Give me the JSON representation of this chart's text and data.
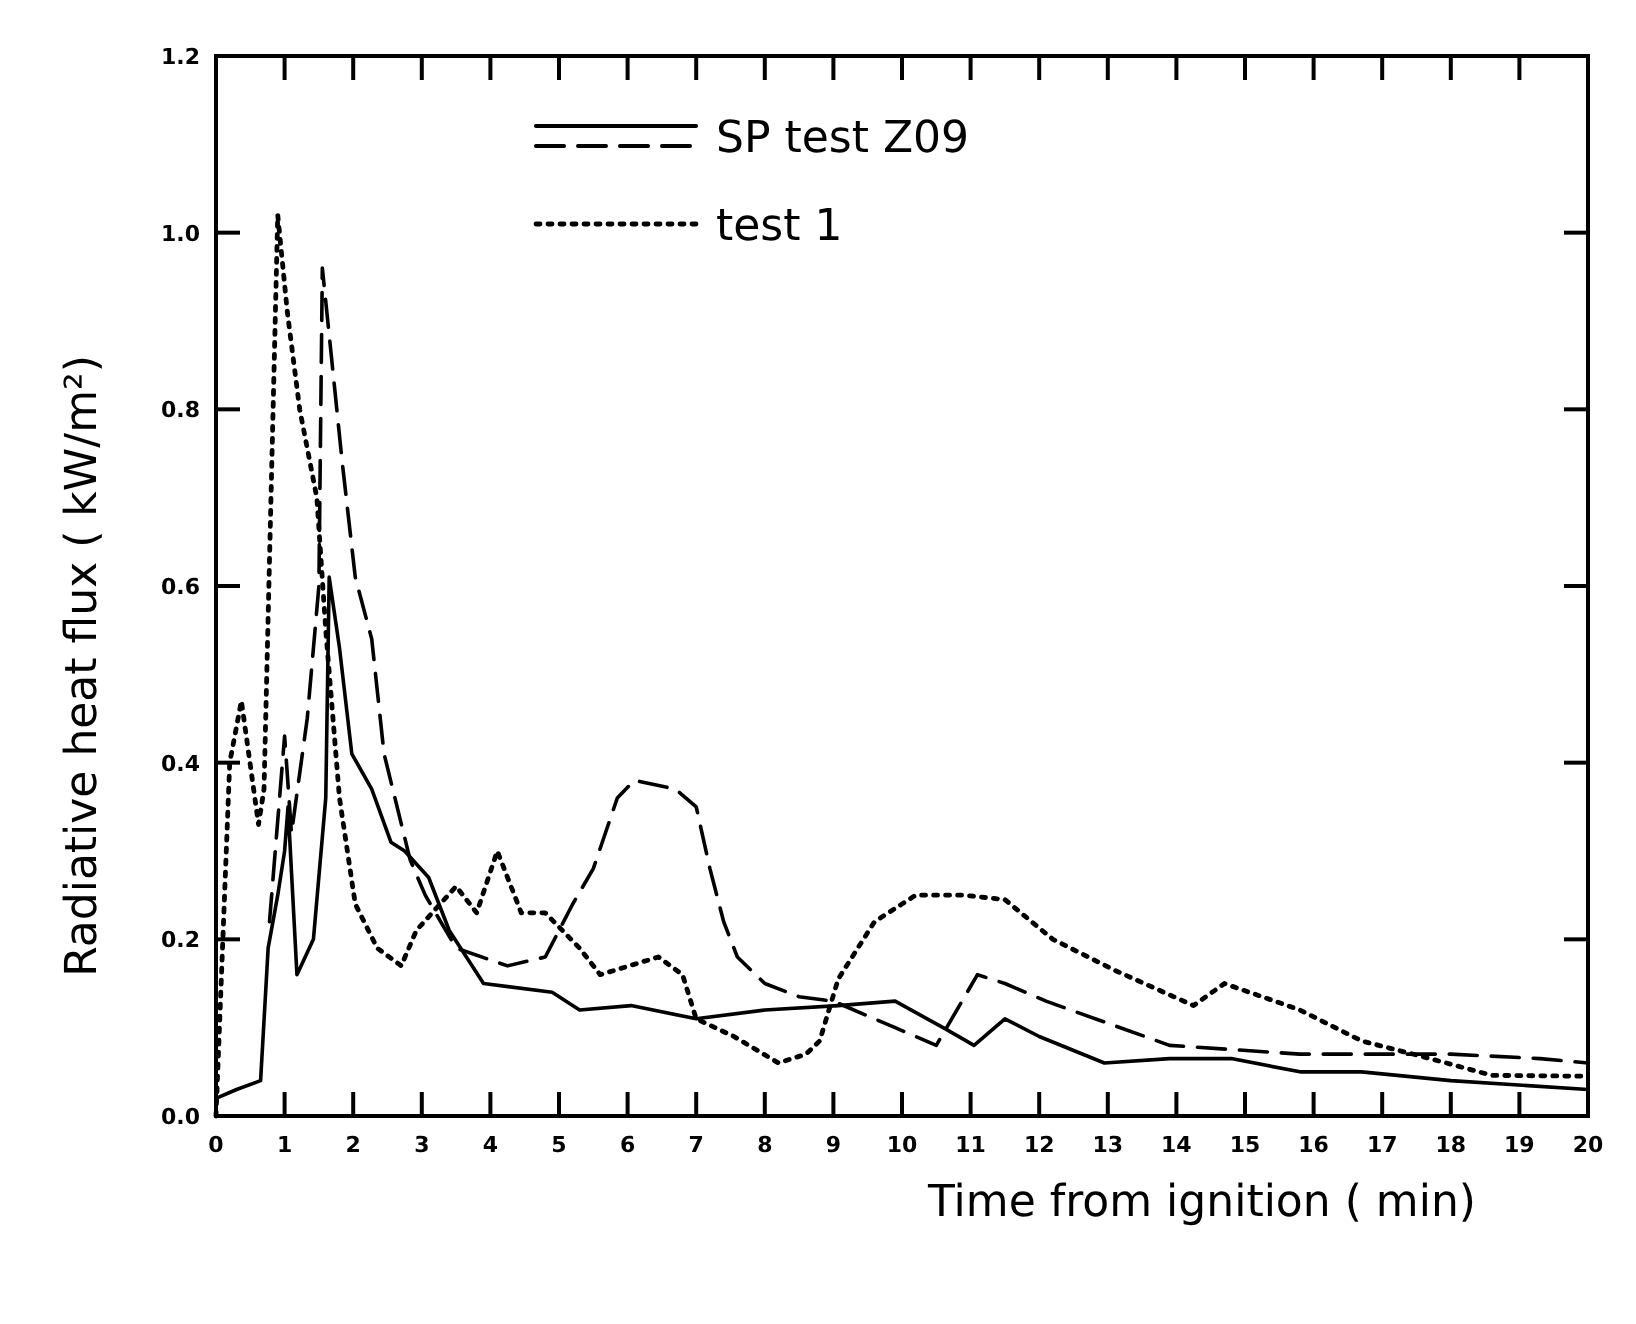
{
  "chart_data": {
    "type": "line",
    "xlabel": "Time  from ignition ( min)",
    "ylabel": "Radiative heat flux ( kW/m²)",
    "xlim": [
      0,
      20
    ],
    "xticks": [
      0,
      1,
      2,
      3,
      4,
      5,
      6,
      7,
      8,
      9,
      10,
      11,
      12,
      13,
      14,
      15,
      16,
      17,
      18,
      19,
      20
    ],
    "ylim": [
      0,
      1.2
    ],
    "yticks": [
      {
        "value": 0,
        "label": "0.0"
      },
      0.2,
      0.4,
      0.6,
      0.8,
      {
        "value": 1,
        "label": "1.0"
      },
      1.2
    ],
    "legend": "top",
    "grid": false,
    "series": [
      {
        "name": "SP test Z09",
        "color": "#000000",
        "line_style": "solid",
        "x": [
          0,
          0.3,
          0.65,
          0.76,
          0.9,
          1.0,
          1.05,
          1.18,
          1.42,
          1.6,
          1.65,
          1.8,
          1.98,
          2.27,
          2.55,
          2.75,
          3.1,
          3.4,
          3.9,
          4.9,
          5.3,
          6.05,
          7.0,
          8.0,
          9.07,
          9.9,
          10.6,
          11.05,
          11.5,
          12.0,
          12.95,
          13.9,
          14.8,
          15.8,
          16.7,
          18.0,
          20.0
        ],
        "values": [
          0.02,
          0.03,
          0.04,
          0.19,
          0.25,
          0.3,
          0.35,
          0.16,
          0.2,
          0.36,
          0.61,
          0.53,
          0.41,
          0.37,
          0.31,
          0.3,
          0.27,
          0.21,
          0.15,
          0.14,
          0.12,
          0.125,
          0.11,
          0.12,
          0.125,
          0.13,
          0.1,
          0.08,
          0.11,
          0.09,
          0.06,
          0.065,
          0.065,
          0.05,
          0.05,
          0.04,
          0.03
        ]
      },
      {
        "color": "#000000",
        "line_style": "dashed",
        "x": [
          0.78,
          1.0,
          1.1,
          1.33,
          1.5,
          1.55,
          1.84,
          2.03,
          2.27,
          2.45,
          2.83,
          3.05,
          3.5,
          4.25,
          4.8,
          5.2,
          5.5,
          5.85,
          6.1,
          6.7,
          7.0,
          7.2,
          7.4,
          7.6,
          8.0,
          8.5,
          9.0,
          9.9,
          10.5,
          11.1,
          11.5,
          12.1,
          13.9,
          15.8,
          18.0,
          19.3,
          20.0
        ],
        "values": [
          0.22,
          0.43,
          0.32,
          0.45,
          0.6,
          0.96,
          0.74,
          0.61,
          0.54,
          0.41,
          0.29,
          0.25,
          0.19,
          0.17,
          0.18,
          0.24,
          0.28,
          0.36,
          0.38,
          0.37,
          0.35,
          0.28,
          0.22,
          0.18,
          0.15,
          0.135,
          0.13,
          0.1,
          0.08,
          0.16,
          0.15,
          0.13,
          0.08,
          0.07,
          0.07,
          0.065,
          0.06
        ]
      },
      {
        "name": "test 1",
        "color": "#000000",
        "line_style": "dotted",
        "x": [
          0,
          0.2,
          0.37,
          0.62,
          0.7,
          0.9,
          1.04,
          1.22,
          1.47,
          1.6,
          1.8,
          2.03,
          2.35,
          2.7,
          2.92,
          3.5,
          3.8,
          4.1,
          4.45,
          4.8,
          5.3,
          5.6,
          6.45,
          6.8,
          7.0,
          7.55,
          8.2,
          8.6,
          8.8,
          9.07,
          9.6,
          10.2,
          10.9,
          11.5,
          12.2,
          13.1,
          14.25,
          14.7,
          15.8,
          16.7,
          17.6,
          18.6,
          20.0
        ],
        "values": [
          0,
          0.4,
          0.47,
          0.33,
          0.37,
          1.02,
          0.91,
          0.8,
          0.7,
          0.55,
          0.36,
          0.24,
          0.19,
          0.17,
          0.21,
          0.26,
          0.23,
          0.3,
          0.23,
          0.23,
          0.19,
          0.16,
          0.18,
          0.16,
          0.11,
          0.09,
          0.06,
          0.07,
          0.085,
          0.155,
          0.22,
          0.25,
          0.25,
          0.245,
          0.2,
          0.165,
          0.125,
          0.15,
          0.12,
          0.085,
          0.067,
          0.046,
          0.045
        ]
      }
    ]
  }
}
